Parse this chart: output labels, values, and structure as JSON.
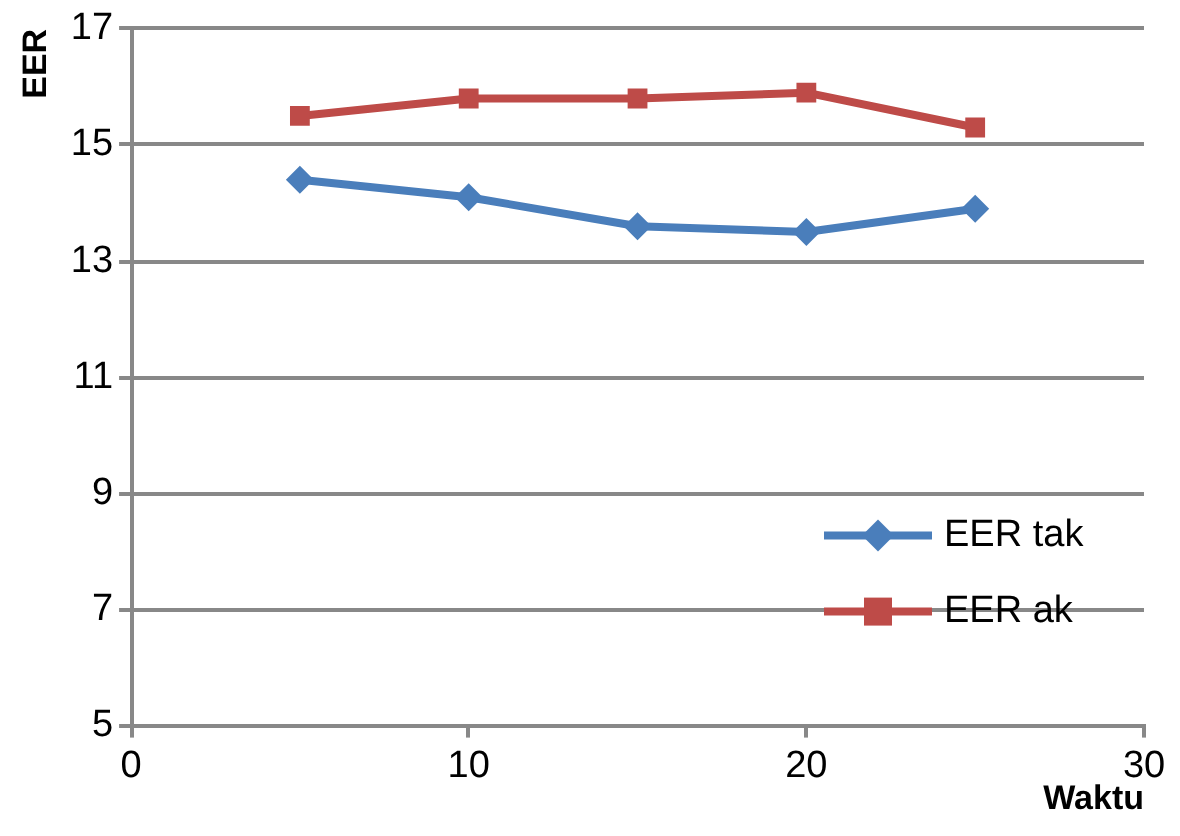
{
  "chart_data": {
    "type": "line",
    "xlabel": "Waktu",
    "ylabel": "EER",
    "x": [
      5,
      10,
      15,
      20,
      25
    ],
    "series": [
      {
        "name": "EER tak",
        "color": "#4a7ebb",
        "values": [
          14.4,
          14.1,
          13.6,
          13.5,
          13.9
        ],
        "marker": "diamond"
      },
      {
        "name": "EER ak",
        "color": "#be4b48",
        "values": [
          15.5,
          15.8,
          15.8,
          15.9,
          15.3
        ],
        "marker": "square"
      }
    ],
    "xlim": [
      0,
      30
    ],
    "xticks": [
      0,
      10,
      20,
      30
    ],
    "ylim": [
      5,
      17
    ],
    "yticks": [
      5,
      7,
      9,
      11,
      13,
      15,
      17
    ],
    "grid": "y",
    "legend": "bottom right"
  }
}
